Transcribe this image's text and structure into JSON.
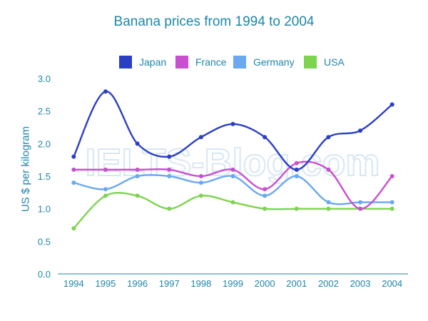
{
  "chart_data": {
    "type": "line",
    "title": "Banana prices from 1994 to 2004",
    "ylabel": "US $ per kilogram",
    "xlabel": "",
    "x": [
      "1994",
      "1995",
      "1996",
      "1997",
      "1998",
      "1999",
      "2000",
      "2001",
      "2002",
      "2003",
      "2004"
    ],
    "ylim": [
      0,
      3.0
    ],
    "yticks": [
      "0.0",
      "0.5",
      "1.0",
      "1.5",
      "2.0",
      "2.5",
      "3.0"
    ],
    "grid": false,
    "legend_position": "top",
    "watermark": "IELTS-Blog.com",
    "series": [
      {
        "name": "Japan",
        "color": "#2b3fc6",
        "values": [
          1.8,
          2.8,
          2.0,
          1.8,
          2.1,
          2.3,
          2.1,
          1.6,
          2.1,
          2.2,
          2.6
        ]
      },
      {
        "name": "France",
        "color": "#c94fd1",
        "values": [
          1.6,
          1.6,
          1.6,
          1.6,
          1.5,
          1.6,
          1.3,
          1.7,
          1.6,
          1.0,
          1.5
        ]
      },
      {
        "name": "Germany",
        "color": "#6aa8f2",
        "values": [
          1.4,
          1.3,
          1.5,
          1.5,
          1.4,
          1.5,
          1.2,
          1.5,
          1.1,
          1.1,
          1.1
        ]
      },
      {
        "name": "USA",
        "color": "#7dd44f",
        "values": [
          0.7,
          1.2,
          1.2,
          1.0,
          1.2,
          1.1,
          1.0,
          1.0,
          1.0,
          1.0,
          1.0
        ]
      }
    ]
  }
}
